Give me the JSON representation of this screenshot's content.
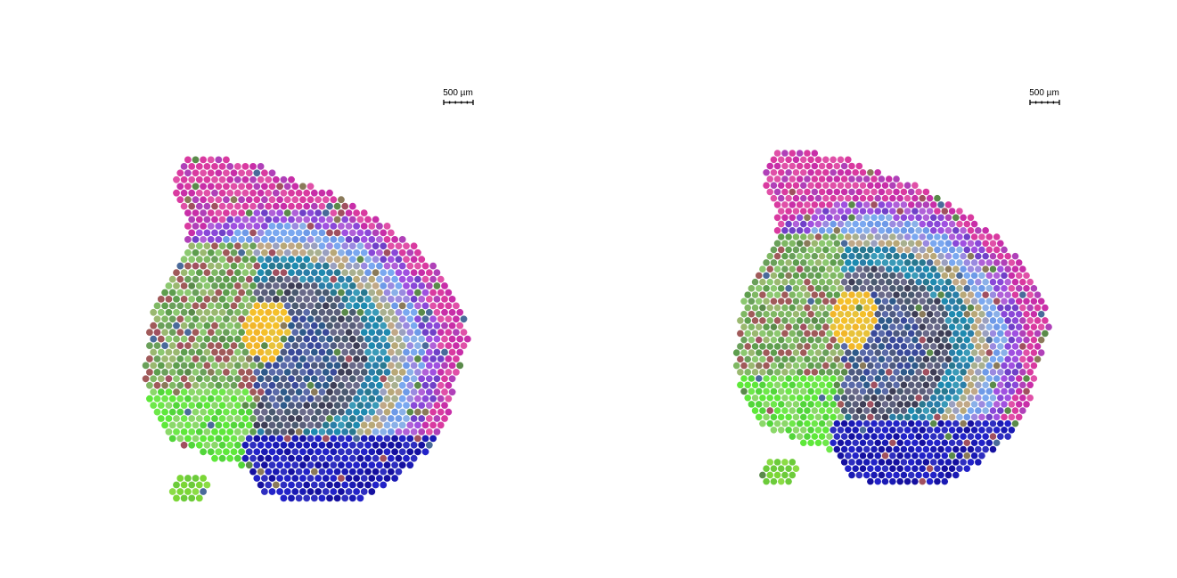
{
  "panels": [
    {
      "scale_bar": {
        "label": "500 µm"
      }
    },
    {
      "scale_bar": {
        "label": "500 µm"
      }
    }
  ]
}
